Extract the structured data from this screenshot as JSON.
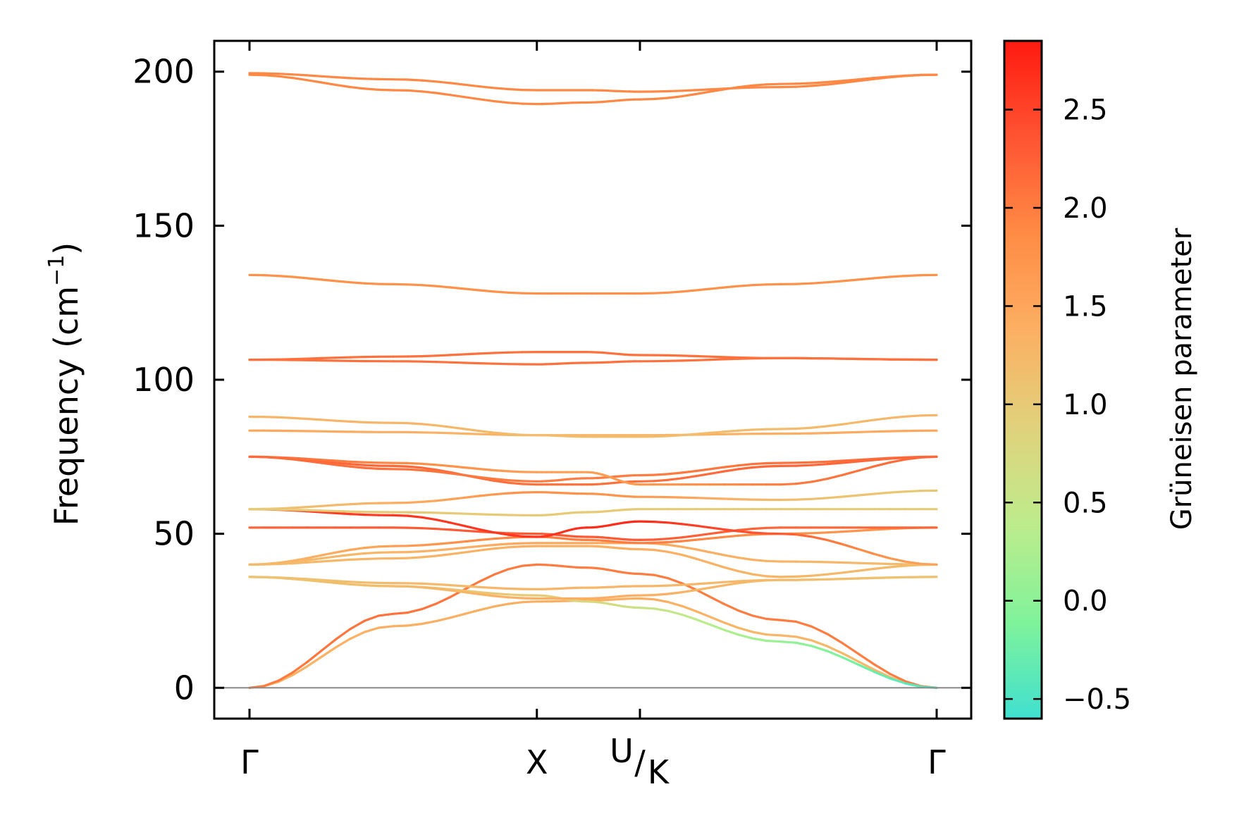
{
  "chart_data": {
    "type": "line",
    "ylabel_main": "Frequency (cm",
    "ylabel_sup": "−1",
    "ylabel_close": ")",
    "ylim": [
      -10,
      210
    ],
    "yticks": [
      "200",
      "150",
      "100",
      "50",
      "0"
    ],
    "ytick_values": [
      200,
      150,
      100,
      50,
      0
    ],
    "xlim": [
      0,
      2.2
    ],
    "kpoints": [
      {
        "label": "Γ",
        "x": 0
      },
      {
        "label": "X",
        "x": 0.92
      },
      {
        "label_top": "U",
        "label_bottom": "K",
        "x": 1.25
      },
      {
        "label": "Γ",
        "x": 2.2
      }
    ],
    "colorbar": {
      "label": "Grüneisen parameter",
      "range": [
        -0.6,
        2.85
      ],
      "ticks": [
        "2.5",
        "2.0",
        "1.5",
        "1.0",
        "0.5",
        "0.0",
        "−0.5"
      ],
      "tick_values": [
        2.5,
        2.0,
        1.5,
        1.0,
        0.5,
        0.0,
        -0.5
      ],
      "colors": [
        "#40e0d0",
        "#80f39a",
        "#bdec8c",
        "#e0d27c",
        "#fcb063",
        "#ff8c45",
        "#ff5432",
        "#ff1a10"
      ]
    },
    "series": [
      {
        "x": [
          0,
          0.46,
          0.92,
          1.08,
          1.25,
          1.7,
          2.2
        ],
        "y": [
          0,
          20,
          28,
          28.3,
          29,
          17,
          0
        ],
        "g": [
          1.3,
          1.4,
          1.4,
          1.4,
          1.4,
          1.3,
          1.2
        ]
      },
      {
        "x": [
          0,
          0.46,
          0.92,
          1.08,
          1.25,
          1.7,
          2.2
        ],
        "y": [
          0,
          24,
          40,
          39,
          37,
          22,
          0
        ],
        "g": [
          2.0,
          2.1,
          2.0,
          2.0,
          2.0,
          2.0,
          2.0
        ]
      },
      {
        "x": [
          0,
          0.46,
          0.92,
          1.08,
          1.25,
          1.7,
          2.2
        ],
        "y": [
          36,
          33,
          30,
          28,
          26,
          15,
          0
        ],
        "g": [
          1.1,
          1.1,
          1.0,
          0.8,
          0.6,
          0.1,
          -0.5
        ]
      },
      {
        "x": [
          0,
          0.46,
          0.92,
          1.08,
          1.25,
          1.7,
          2.2
        ],
        "y": [
          36,
          34,
          32,
          32.5,
          33,
          35,
          36
        ],
        "g": [
          1.1,
          1.2,
          1.3,
          1.3,
          1.3,
          1.2,
          1.1
        ]
      },
      {
        "x": [
          0,
          0.46,
          0.92,
          1.08,
          1.25,
          1.7,
          2.2
        ],
        "y": [
          36,
          33,
          29,
          29,
          30,
          35,
          36
        ],
        "g": [
          1.1,
          1.2,
          1.4,
          1.4,
          1.4,
          1.2,
          1.1
        ]
      },
      {
        "x": [
          0,
          0.46,
          0.92,
          1.08,
          1.25,
          1.7,
          2.2
        ],
        "y": [
          40,
          42,
          46,
          46,
          45,
          36,
          40
        ],
        "g": [
          1.2,
          1.3,
          1.4,
          1.4,
          1.4,
          1.3,
          1.2
        ]
      },
      {
        "x": [
          0,
          0.46,
          0.92,
          1.08,
          1.25,
          1.7,
          2.2
        ],
        "y": [
          40,
          44,
          47,
          47,
          47,
          41,
          40
        ],
        "g": [
          1.2,
          1.3,
          1.5,
          1.5,
          1.5,
          1.3,
          1.2
        ]
      },
      {
        "x": [
          0,
          0.46,
          0.92,
          1.08,
          1.25,
          1.7,
          2.2
        ],
        "y": [
          40,
          46,
          49,
          48,
          47,
          50,
          52
        ],
        "g": [
          1.2,
          1.6,
          2.0,
          2.0,
          2.0,
          1.8,
          1.7
        ]
      },
      {
        "x": [
          0,
          0.46,
          0.92,
          1.08,
          1.25,
          1.7,
          2.2
        ],
        "y": [
          52,
          52,
          50,
          49,
          48,
          52,
          52
        ],
        "g": [
          2.2,
          2.3,
          2.3,
          2.3,
          2.3,
          2.2,
          2.2
        ]
      },
      {
        "x": [
          0,
          0.46,
          0.92,
          1.08,
          1.25,
          1.7,
          2.2
        ],
        "y": [
          58,
          56,
          49,
          52,
          54,
          50,
          40
        ],
        "g": [
          2.5,
          2.6,
          2.6,
          2.7,
          2.7,
          2.3,
          1.5
        ]
      },
      {
        "x": [
          0,
          0.46,
          0.92,
          1.08,
          1.25,
          1.7,
          2.2
        ],
        "y": [
          58,
          60,
          63.5,
          63,
          62,
          61,
          64
        ],
        "g": [
          1.0,
          1.4,
          1.8,
          1.8,
          1.7,
          1.2,
          1.0
        ]
      },
      {
        "x": [
          0,
          0.46,
          0.92,
          1.08,
          1.25,
          1.7,
          2.2
        ],
        "y": [
          58,
          57,
          56,
          57,
          58,
          58,
          58
        ],
        "g": [
          1.0,
          1.0,
          1.0,
          1.0,
          1.0,
          1.0,
          1.0
        ]
      },
      {
        "x": [
          0,
          0.46,
          0.92,
          1.08,
          1.25,
          1.7,
          2.2
        ],
        "y": [
          75,
          72,
          66,
          66,
          67,
          72,
          75
        ],
        "g": [
          2.2,
          2.2,
          2.1,
          2.1,
          2.1,
          2.2,
          2.2
        ]
      },
      {
        "x": [
          0,
          0.46,
          0.92,
          1.08,
          1.25,
          1.7,
          2.2
        ],
        "y": [
          75,
          71,
          67,
          68,
          69,
          73,
          75
        ],
        "g": [
          2.2,
          2.1,
          2.0,
          2.0,
          2.0,
          2.1,
          2.2
        ]
      },
      {
        "x": [
          0,
          0.46,
          0.92,
          1.08,
          1.25,
          1.7,
          2.2
        ],
        "y": [
          75,
          73,
          70,
          70,
          66,
          66,
          75
        ],
        "g": [
          2.2,
          1.9,
          1.6,
          1.6,
          1.7,
          2.0,
          2.2
        ]
      },
      {
        "x": [
          0,
          0.46,
          0.92,
          1.08,
          1.25,
          1.7,
          2.2
        ],
        "y": [
          83.5,
          83,
          82,
          82,
          82,
          82.5,
          83.5
        ],
        "g": [
          1.5,
          1.4,
          1.3,
          1.3,
          1.3,
          1.4,
          1.5
        ]
      },
      {
        "x": [
          0,
          0.46,
          0.92,
          1.08,
          1.25,
          1.7,
          2.2
        ],
        "y": [
          88,
          86,
          82,
          81.5,
          81.5,
          84,
          88.5
        ],
        "g": [
          1.3,
          1.3,
          1.2,
          1.2,
          1.2,
          1.2,
          1.3
        ]
      },
      {
        "x": [
          0,
          0.46,
          0.92,
          1.08,
          1.25,
          1.7,
          2.2
        ],
        "y": [
          106.5,
          107.5,
          109,
          109,
          108,
          107,
          106.5
        ],
        "g": [
          2.1,
          2.1,
          2.1,
          2.1,
          2.1,
          2.1,
          2.1
        ]
      },
      {
        "x": [
          0,
          0.46,
          0.92,
          1.08,
          1.25,
          1.7,
          2.2
        ],
        "y": [
          106.5,
          106,
          105,
          105.5,
          106,
          107,
          106.5
        ],
        "g": [
          2.1,
          2.1,
          2.1,
          2.1,
          2.1,
          2.1,
          2.1
        ]
      },
      {
        "x": [
          0,
          0.46,
          0.92,
          1.08,
          1.25,
          1.7,
          2.2
        ],
        "y": [
          134,
          131,
          128,
          128,
          128,
          131,
          134
        ],
        "g": [
          1.8,
          1.8,
          1.8,
          1.8,
          1.8,
          1.8,
          1.8
        ]
      },
      {
        "x": [
          0,
          0.46,
          0.92,
          1.08,
          1.25,
          1.7,
          2.2
        ],
        "y": [
          199.5,
          197.5,
          194,
          194,
          193.5,
          195,
          199
        ],
        "g": [
          1.9,
          1.9,
          1.9,
          1.9,
          1.9,
          1.9,
          1.9
        ]
      },
      {
        "x": [
          0,
          0.46,
          0.92,
          1.08,
          1.25,
          1.7,
          2.2
        ],
        "y": [
          199,
          194,
          189.5,
          190,
          191,
          196,
          199
        ],
        "g": [
          1.9,
          1.9,
          1.9,
          1.9,
          1.9,
          1.9,
          1.9
        ]
      }
    ]
  }
}
